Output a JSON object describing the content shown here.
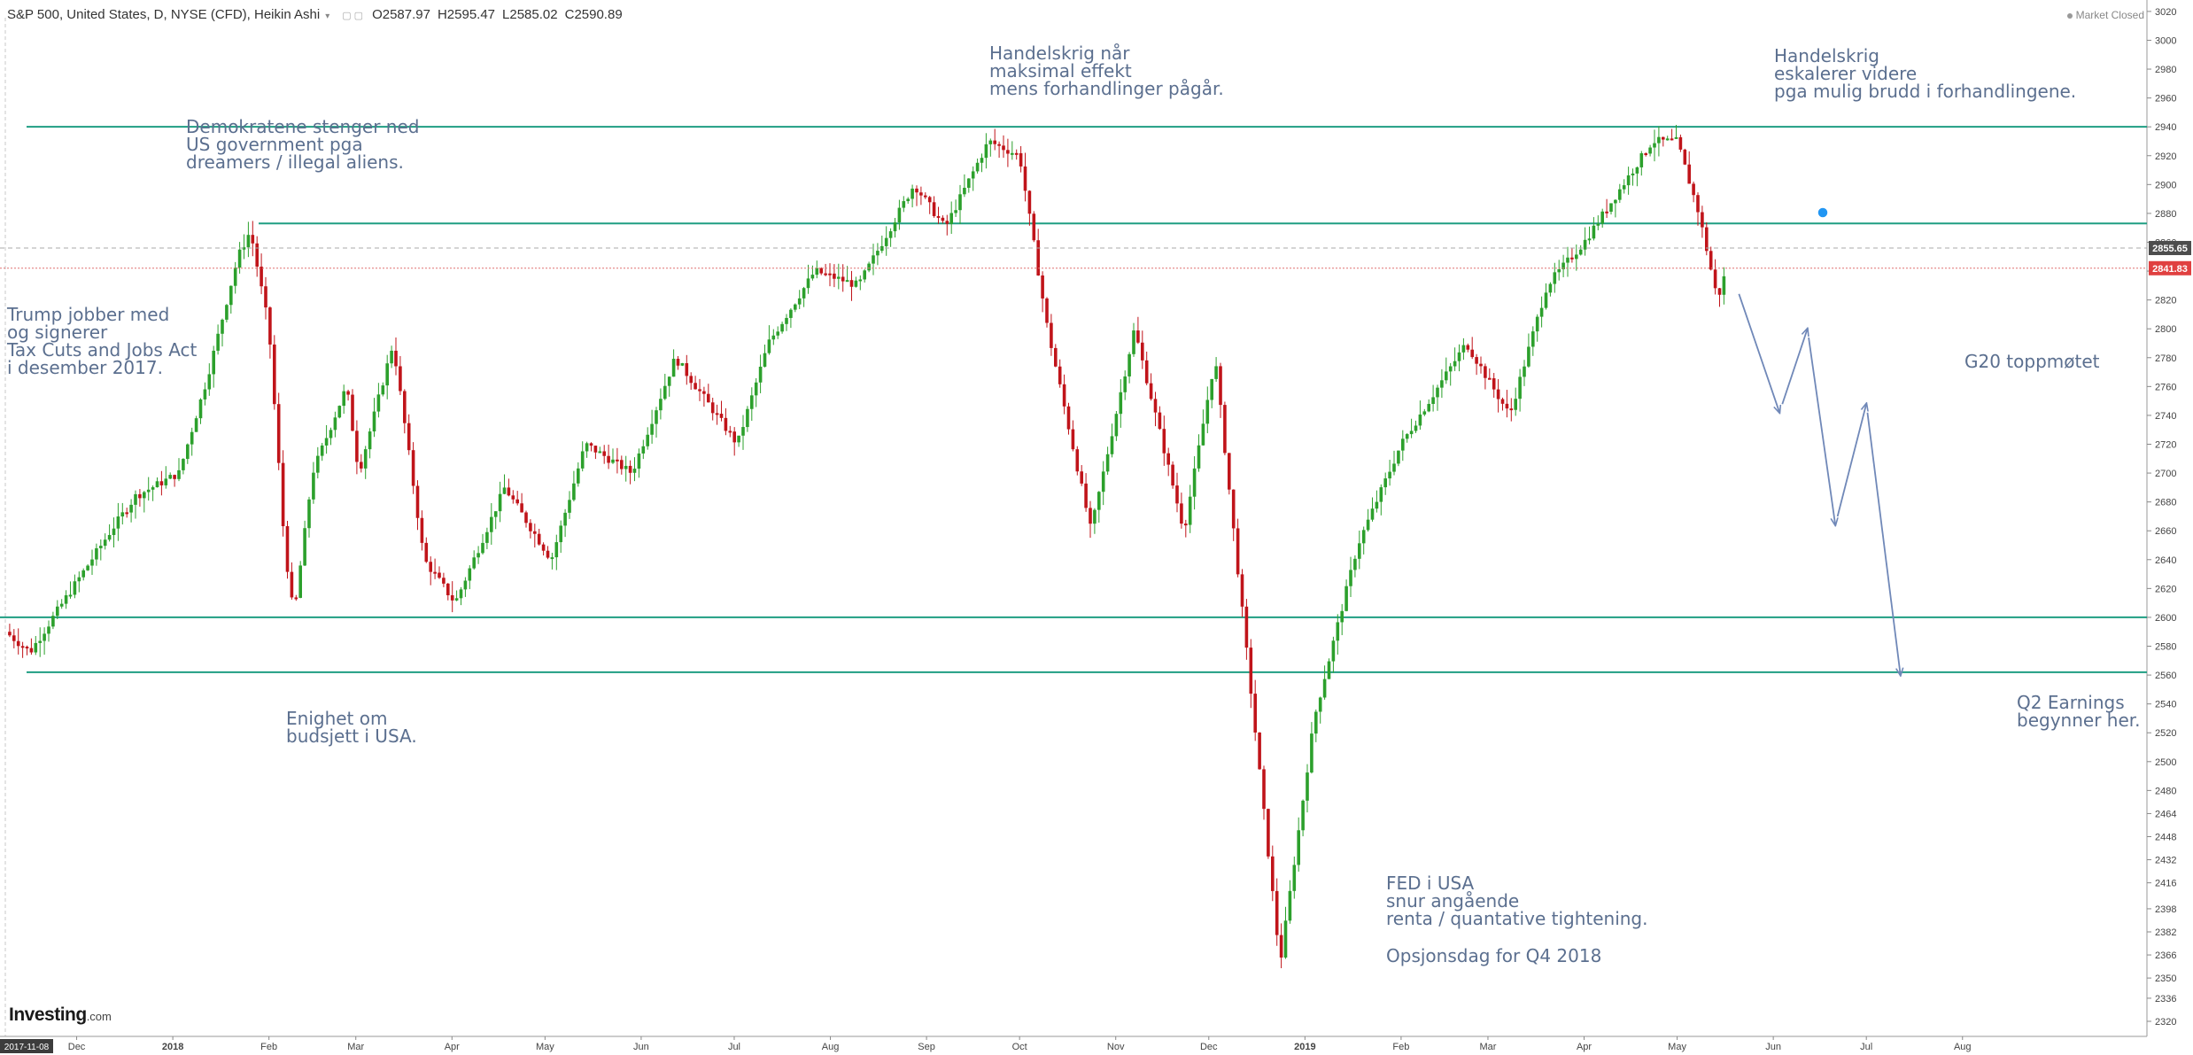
{
  "header": {
    "symbol": "S&P 500, United States, D, NYSE (CFD), Heikin Ashi",
    "open": "O2587.97",
    "high": "H2595.47",
    "low": "L2585.02",
    "close": "C2590.89"
  },
  "market_status": "Market Closed",
  "logo": {
    "name": "Investing",
    "suffix": ".com"
  },
  "colors": {
    "up": "#2ca02c",
    "down": "#c0141a",
    "level_line": "#1f9e82",
    "annotation": "#5b6f8f",
    "arrow": "#7088b8",
    "price_badge": "#e04040",
    "current_badge": "#4d4d4d"
  },
  "chart_data": {
    "type": "candlestick",
    "style": "Heikin Ashi",
    "y_axis": {
      "min": 2312,
      "max": 3028,
      "tick_labels": [
        3020,
        3000,
        2980,
        2960,
        2940,
        2920,
        2900,
        2880,
        2860,
        2840,
        2820,
        2800,
        2780,
        2760,
        2740,
        2720,
        2700,
        2680,
        2660,
        2640,
        2620,
        2600,
        2580,
        2560,
        2540,
        2520,
        2500,
        2480,
        2464,
        2448,
        2432,
        2416,
        2398,
        2382,
        2366,
        2350,
        2336,
        2320
      ]
    },
    "x_axis": {
      "start_label": "2017-11-08",
      "tick_labels": [
        "Dec",
        "2018",
        "Feb",
        "Mar",
        "Apr",
        "May",
        "Jun",
        "Jul",
        "Aug",
        "Sep",
        "Oct",
        "Nov",
        "Dec",
        "2019",
        "Feb",
        "Mar",
        "Apr",
        "May",
        "Jun",
        "Jul",
        "Aug"
      ]
    },
    "price_badges": [
      {
        "label": "2855.65",
        "value": 2856
      },
      {
        "label": "2841.83",
        "value": 2842
      }
    ],
    "horizontal_levels": [
      2940,
      2873,
      2600,
      2562
    ],
    "close_path": [
      [
        "2017-11-08",
        2590
      ],
      [
        "2017-11-16",
        2576
      ],
      [
        "2017-11-28",
        2615
      ],
      [
        "2017-12-12",
        2660
      ],
      [
        "2017-12-20",
        2684
      ],
      [
        "2018-01-03",
        2700
      ],
      [
        "2018-01-12",
        2765
      ],
      [
        "2018-01-22",
        2850
      ],
      [
        "2018-01-26",
        2868
      ],
      [
        "2018-02-01",
        2800
      ],
      [
        "2018-02-06",
        2650
      ],
      [
        "2018-02-09",
        2600
      ],
      [
        "2018-02-15",
        2700
      ],
      [
        "2018-02-26",
        2760
      ],
      [
        "2018-03-02",
        2700
      ],
      [
        "2018-03-13",
        2790
      ],
      [
        "2018-03-23",
        2640
      ],
      [
        "2018-04-02",
        2610
      ],
      [
        "2018-04-18",
        2690
      ],
      [
        "2018-05-03",
        2640
      ],
      [
        "2018-05-14",
        2720
      ],
      [
        "2018-05-29",
        2700
      ],
      [
        "2018-06-12",
        2780
      ],
      [
        "2018-06-22",
        2750
      ],
      [
        "2018-07-02",
        2720
      ],
      [
        "2018-07-12",
        2790
      ],
      [
        "2018-07-27",
        2840
      ],
      [
        "2018-08-10",
        2830
      ],
      [
        "2018-08-28",
        2900
      ],
      [
        "2018-09-07",
        2870
      ],
      [
        "2018-09-21",
        2930
      ],
      [
        "2018-10-01",
        2920
      ],
      [
        "2018-10-10",
        2800
      ],
      [
        "2018-10-24",
        2660
      ],
      [
        "2018-11-07",
        2800
      ],
      [
        "2018-11-23",
        2660
      ],
      [
        "2018-12-03",
        2780
      ],
      [
        "2018-12-10",
        2640
      ],
      [
        "2018-12-24",
        2360
      ],
      [
        "2019-01-04",
        2530
      ],
      [
        "2019-01-18",
        2650
      ],
      [
        "2019-02-01",
        2720
      ],
      [
        "2019-02-22",
        2790
      ],
      [
        "2019-03-08",
        2740
      ],
      [
        "2019-03-20",
        2830
      ],
      [
        "2019-04-01",
        2860
      ],
      [
        "2019-04-23",
        2930
      ],
      [
        "2019-05-01",
        2930
      ],
      [
        "2019-05-08",
        2880
      ],
      [
        "2019-05-14",
        2820
      ],
      [
        "2019-05-17",
        2842
      ]
    ],
    "projected_path": [
      [
        "2019-05-20",
        2830
      ],
      [
        "2019-06-03",
        2742
      ],
      [
        "2019-06-12",
        2800
      ],
      [
        "2019-06-21",
        2664
      ],
      [
        "2019-07-01",
        2748
      ],
      [
        "2019-07-12",
        2560
      ]
    ],
    "annotations": [
      {
        "lines": [
          "Trump jobber med",
          "og signerer",
          "Tax Cuts and Jobs Act",
          "i desember 2017."
        ]
      },
      {
        "lines": [
          "Demokratene stenger ned",
          "US government pga",
          "dreamers / illegal aliens."
        ]
      },
      {
        "lines": [
          "Enighet om",
          "budsjett i USA."
        ]
      },
      {
        "lines": [
          "Handelskrig når",
          "maksimal effekt",
          "mens forhandlinger pågår."
        ]
      },
      {
        "lines": [
          "FED i USA",
          "snur angående",
          "renta / quantative tightening."
        ]
      },
      {
        "lines": [
          "Opsjonsdag for Q4 2018"
        ]
      },
      {
        "lines": [
          "Handelskrig",
          "eskalerer videre",
          "pga mulig brudd i forhandlingene."
        ]
      },
      {
        "lines": [
          "G20 toppmøtet"
        ]
      },
      {
        "lines": [
          "Q2 Earnings",
          "begynner her."
        ]
      }
    ]
  }
}
